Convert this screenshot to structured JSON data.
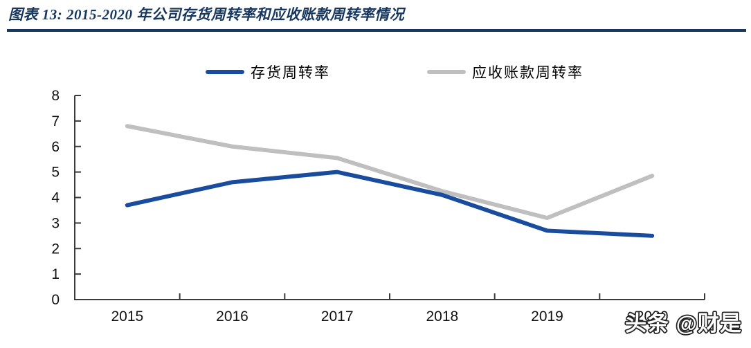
{
  "header": {
    "title": "图表 13: 2015-2020 年公司存货周转率和应收账款周转率情况"
  },
  "colors": {
    "title": "#17375E",
    "divider": "#17375E",
    "axis": "#3A3A3A",
    "tick_label": "#111111",
    "series_inventory": "#1A4C9E",
    "series_receivables": "#BFBFBF",
    "watermark_fill": "#FFFFFF",
    "watermark_stroke": "#222222"
  },
  "watermark": {
    "text": "头条 @财是"
  },
  "chart_data": {
    "type": "line",
    "title": "2015-2020 年公司存货周转率和应收账款周转率情况",
    "categories": [
      "2015",
      "2016",
      "2017",
      "2018",
      "2019",
      "2020"
    ],
    "series": [
      {
        "name": "存货周转率",
        "color": "#1A4C9E",
        "values": [
          3.7,
          4.6,
          5.0,
          4.1,
          2.7,
          2.5
        ]
      },
      {
        "name": "应收账款周转率",
        "color": "#BFBFBF",
        "values": [
          6.8,
          6.0,
          5.55,
          4.25,
          3.2,
          4.85
        ]
      }
    ],
    "xlabel": "",
    "ylabel": "",
    "ylim": [
      0,
      8
    ],
    "y_ticks": [
      0,
      1,
      2,
      3,
      4,
      5,
      6,
      7,
      8
    ],
    "grid": false,
    "legend_position": "top"
  }
}
